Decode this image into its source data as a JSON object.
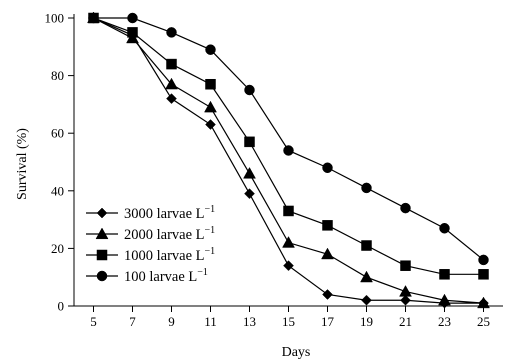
{
  "chart_data": {
    "type": "line",
    "xlabel": "Days",
    "ylabel": "Survival (%)",
    "x": [
      5,
      7,
      9,
      11,
      13,
      15,
      17,
      19,
      21,
      23,
      25
    ],
    "xlim": [
      4,
      26
    ],
    "ylim": [
      0,
      100
    ],
    "yticks": [
      0,
      20,
      40,
      60,
      80,
      100
    ],
    "grid": false,
    "legend": "bottom-left",
    "series": [
      {
        "name": "3000 larvae L",
        "unit_sup": "−1",
        "marker": "diamond",
        "values": [
          100,
          94,
          72,
          63,
          39,
          14,
          4,
          2,
          2,
          1,
          1
        ]
      },
      {
        "name": "2000 larvae L",
        "unit_sup": "−1",
        "marker": "triangle",
        "values": [
          100,
          93,
          77,
          69,
          46,
          22,
          18,
          10,
          5,
          2,
          1
        ]
      },
      {
        "name": "1000 larvae L",
        "unit_sup": "−1",
        "marker": "square",
        "values": [
          100,
          95,
          84,
          77,
          57,
          33,
          28,
          21,
          14,
          11,
          11
        ]
      },
      {
        "name": "100 larvae L",
        "unit_sup": "−1",
        "marker": "circle",
        "values": [
          100,
          100,
          95,
          89,
          75,
          54,
          48,
          41,
          34,
          27,
          16
        ]
      }
    ]
  }
}
